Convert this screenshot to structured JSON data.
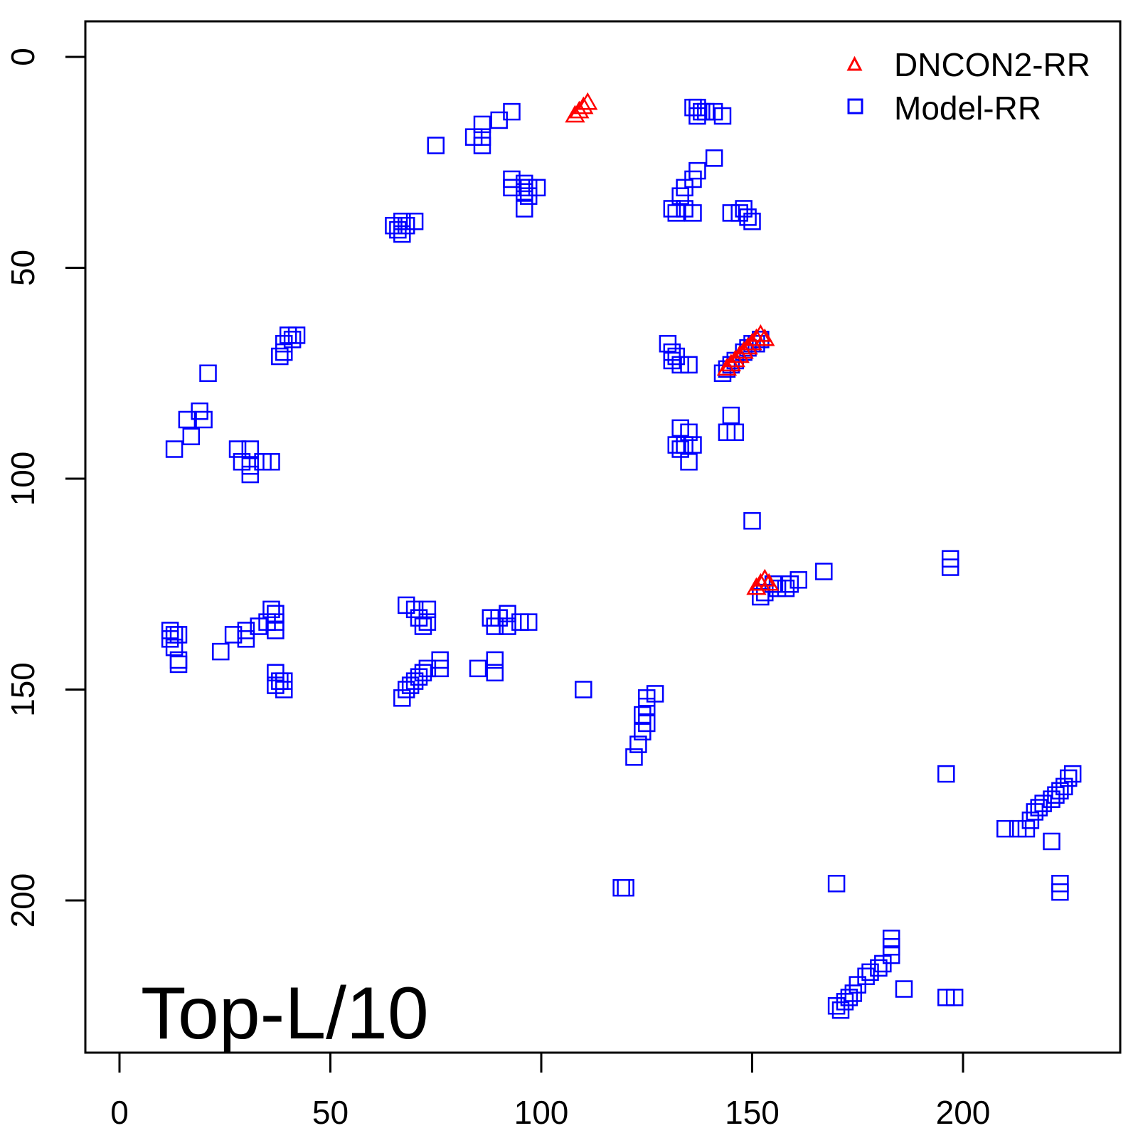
{
  "chart_data": {
    "type": "scatter",
    "title": "",
    "xlabel": "",
    "ylabel": "",
    "xlim": [
      -8,
      238
    ],
    "ylim": [
      -8,
      238
    ],
    "y_reversed": true,
    "x_ticks": [
      0,
      50,
      100,
      150,
      200
    ],
    "y_ticks": [
      0,
      50,
      100,
      150,
      200
    ],
    "x_tick_labels": [
      "0",
      "50",
      "100",
      "150",
      "200"
    ],
    "y_tick_labels": [
      "0",
      "50",
      "100",
      "150",
      "200"
    ],
    "panel_label": "Top-L/10",
    "legend_position": "top-right",
    "series": [
      {
        "name": "DNCON2-RR",
        "marker": "triangle",
        "color": "#ff0000",
        "points": [
          [
            108,
            14
          ],
          [
            109,
            13
          ],
          [
            110,
            12
          ],
          [
            111,
            11
          ],
          [
            144,
            74
          ],
          [
            145,
            73
          ],
          [
            146,
            72
          ],
          [
            147,
            71
          ],
          [
            148,
            70
          ],
          [
            149,
            69
          ],
          [
            150,
            68
          ],
          [
            151,
            67
          ],
          [
            152,
            66
          ],
          [
            153,
            67
          ],
          [
            151,
            126
          ],
          [
            152,
            125
          ],
          [
            153,
            124
          ],
          [
            154,
            125
          ]
        ]
      },
      {
        "name": "Model-RR",
        "marker": "square",
        "color": "#0000ff",
        "points": [
          [
            75,
            21
          ],
          [
            84,
            19
          ],
          [
            86,
            19
          ],
          [
            86,
            16
          ],
          [
            86,
            21
          ],
          [
            90,
            15
          ],
          [
            93,
            13
          ],
          [
            93,
            29
          ],
          [
            93,
            31
          ],
          [
            96,
            30
          ],
          [
            97,
            31
          ],
          [
            99,
            31
          ],
          [
            96,
            32
          ],
          [
            97,
            33
          ],
          [
            96,
            36
          ],
          [
            65,
            40
          ],
          [
            66,
            41
          ],
          [
            67,
            42
          ],
          [
            68,
            40
          ],
          [
            67,
            39
          ],
          [
            70,
            39
          ],
          [
            136,
            12
          ],
          [
            137,
            12
          ],
          [
            138,
            13
          ],
          [
            137,
            14
          ],
          [
            139,
            13
          ],
          [
            141,
            13
          ],
          [
            143,
            14
          ],
          [
            141,
            24
          ],
          [
            137,
            27
          ],
          [
            136,
            29
          ],
          [
            134,
            31
          ],
          [
            133,
            33
          ],
          [
            131,
            36
          ],
          [
            132,
            37
          ],
          [
            134,
            36
          ],
          [
            136,
            37
          ],
          [
            145,
            37
          ],
          [
            147,
            37
          ],
          [
            148,
            36
          ],
          [
            149,
            38
          ],
          [
            150,
            39
          ],
          [
            40,
            66
          ],
          [
            41,
            67
          ],
          [
            39,
            68
          ],
          [
            39,
            70
          ],
          [
            38,
            71
          ],
          [
            42,
            66
          ],
          [
            21,
            75
          ],
          [
            19,
            84
          ],
          [
            16,
            86
          ],
          [
            20,
            86
          ],
          [
            17,
            90
          ],
          [
            13,
            93
          ],
          [
            28,
            93
          ],
          [
            31,
            93
          ],
          [
            29,
            96
          ],
          [
            31,
            97
          ],
          [
            31,
            99
          ],
          [
            34,
            96
          ],
          [
            36,
            96
          ],
          [
            130,
            68
          ],
          [
            131,
            70
          ],
          [
            132,
            71
          ],
          [
            131,
            72
          ],
          [
            133,
            73
          ],
          [
            135,
            73
          ],
          [
            143,
            75
          ],
          [
            144,
            74
          ],
          [
            145,
            73
          ],
          [
            146,
            72
          ],
          [
            148,
            70
          ],
          [
            150,
            68
          ],
          [
            152,
            67
          ],
          [
            149,
            69
          ],
          [
            151,
            68
          ],
          [
            145,
            85
          ],
          [
            144,
            89
          ],
          [
            146,
            89
          ],
          [
            133,
            88
          ],
          [
            135,
            89
          ],
          [
            132,
            92
          ],
          [
            134,
            92
          ],
          [
            133,
            93
          ],
          [
            136,
            92
          ],
          [
            135,
            96
          ],
          [
            150,
            110
          ],
          [
            197,
            119
          ],
          [
            197,
            121
          ],
          [
            167,
            122
          ],
          [
            161,
            124
          ],
          [
            159,
            125
          ],
          [
            158,
            126
          ],
          [
            156,
            126
          ],
          [
            155,
            125
          ],
          [
            153,
            127
          ],
          [
            152,
            128
          ],
          [
            12,
            136
          ],
          [
            13,
            137
          ],
          [
            12,
            138
          ],
          [
            14,
            137
          ],
          [
            13,
            140
          ],
          [
            14,
            143
          ],
          [
            14,
            144
          ],
          [
            24,
            141
          ],
          [
            27,
            137
          ],
          [
            30,
            136
          ],
          [
            30,
            138
          ],
          [
            33,
            135
          ],
          [
            35,
            134
          ],
          [
            36,
            131
          ],
          [
            37,
            132
          ],
          [
            37,
            134
          ],
          [
            37,
            136
          ],
          [
            68,
            130
          ],
          [
            70,
            131
          ],
          [
            71,
            133
          ],
          [
            72,
            135
          ],
          [
            73,
            131
          ],
          [
            73,
            134
          ],
          [
            88,
            133
          ],
          [
            90,
            133
          ],
          [
            92,
            132
          ],
          [
            92,
            135
          ],
          [
            95,
            134
          ],
          [
            97,
            134
          ],
          [
            89,
            135
          ],
          [
            85,
            145
          ],
          [
            89,
            143
          ],
          [
            89,
            146
          ],
          [
            76,
            143
          ],
          [
            76,
            145
          ],
          [
            67,
            152
          ],
          [
            68,
            150
          ],
          [
            69,
            149
          ],
          [
            70,
            148
          ],
          [
            71,
            147
          ],
          [
            72,
            146
          ],
          [
            73,
            145
          ],
          [
            37,
            146
          ],
          [
            38,
            148
          ],
          [
            37,
            149
          ],
          [
            39,
            150
          ],
          [
            39,
            148
          ],
          [
            110,
            150
          ],
          [
            127,
            151
          ],
          [
            125,
            152
          ],
          [
            125,
            154
          ],
          [
            124,
            156
          ],
          [
            125,
            158
          ],
          [
            124,
            160
          ],
          [
            123,
            163
          ],
          [
            122,
            166
          ],
          [
            196,
            170
          ],
          [
            226,
            170
          ],
          [
            225,
            171
          ],
          [
            224,
            173
          ],
          [
            223,
            174
          ],
          [
            222,
            175
          ],
          [
            221,
            176
          ],
          [
            219,
            177
          ],
          [
            218,
            178
          ],
          [
            217,
            179
          ],
          [
            216,
            181
          ],
          [
            215,
            183
          ],
          [
            210,
            183
          ],
          [
            213,
            183
          ],
          [
            221,
            186
          ],
          [
            223,
            196
          ],
          [
            223,
            198
          ],
          [
            170,
            196
          ],
          [
            120,
            197
          ],
          [
            119,
            197
          ],
          [
            183,
            209
          ],
          [
            183,
            211
          ],
          [
            183,
            213
          ],
          [
            181,
            215
          ],
          [
            180,
            216
          ],
          [
            178,
            217
          ],
          [
            177,
            218
          ],
          [
            175,
            220
          ],
          [
            174,
            222
          ],
          [
            173,
            223
          ],
          [
            172,
            224
          ],
          [
            170,
            225
          ],
          [
            171,
            226
          ],
          [
            186,
            221
          ],
          [
            196,
            223
          ],
          [
            198,
            223
          ]
        ]
      }
    ]
  }
}
